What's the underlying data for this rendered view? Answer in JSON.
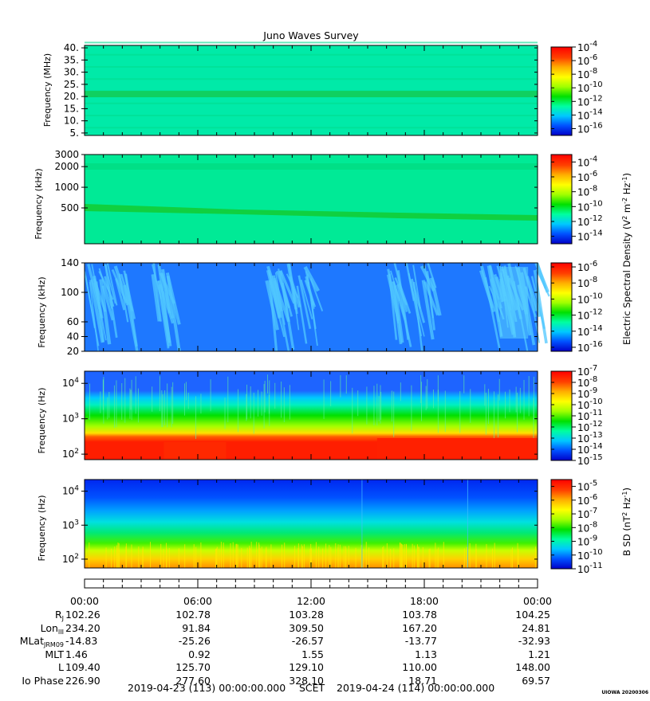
{
  "title": "Juno Waves Survey",
  "colors": {
    "background": "#ffffff",
    "axis": "#000000",
    "colorbar_stops": [
      "#0000c8",
      "#0050ff",
      "#00c8ff",
      "#00ffa0",
      "#00e000",
      "#a0ff00",
      "#ffff00",
      "#ffb000",
      "#ff4000",
      "#ff0000"
    ]
  },
  "chart_data": [
    {
      "type": "heatmap",
      "title": "Juno Waves Survey",
      "ylabel": "Frequency (MHz)",
      "ylim": [
        4,
        41
      ],
      "y_scale": "linear",
      "ytick_labels": [
        "40.",
        "35.",
        "30.",
        "25.",
        "20.",
        "15.",
        "10.",
        "5."
      ],
      "ytick_values": [
        40,
        35,
        30,
        25,
        20,
        15,
        10,
        5
      ],
      "colorbar_tick_labels": [
        "-4",
        "-6",
        "-8",
        "-10",
        "-12",
        "-14",
        "-16"
      ],
      "colorbar_range_log10": [
        -17,
        -4
      ],
      "features": [
        {
          "description": "uniform background",
          "log10_level": -12.8
        },
        {
          "description": "band near 21 MHz",
          "y": 21,
          "log10_level": -11.6
        }
      ]
    },
    {
      "type": "heatmap",
      "ylabel": "Frequency (kHz)",
      "ylim": [
        150,
        3000
      ],
      "y_scale": "log",
      "ytick_labels": [
        "3000",
        "2000",
        "1000",
        "500"
      ],
      "ytick_values": [
        3000,
        2000,
        1000,
        500
      ],
      "colorbar_tick_labels": [
        "-4",
        "-6",
        "-8",
        "-10",
        "-12",
        "-14"
      ],
      "colorbar_range_log10": [
        -15,
        -3
      ],
      "colorbar_label": "Electric Spectral Density (V^2 m^-2 Hz^-1)",
      "features": [
        {
          "description": "background",
          "log10_level": -11.6
        },
        {
          "description": "band near 2000 kHz",
          "y": 2000,
          "log10_level": -10.9
        },
        {
          "description": "drifting band",
          "y_start": 480,
          "y_end": 300,
          "log10_level": -10.2
        }
      ]
    },
    {
      "type": "heatmap",
      "ylabel": "Frequency (kHz)",
      "ylim": [
        20,
        140
      ],
      "y_scale": "linear",
      "ytick_labels": [
        "140",
        "100",
        "60",
        "40",
        "20"
      ],
      "ytick_values": [
        140,
        100,
        60,
        40,
        20
      ],
      "colorbar_tick_labels": [
        "-6",
        "-8",
        "-10",
        "-12",
        "-14",
        "-16"
      ],
      "colorbar_range_log10": [
        -16.5,
        -5.5
      ],
      "features": [
        {
          "description": "quiet background",
          "log10_level": -14.6
        },
        {
          "description": "bursty emission patches",
          "x_hours": [
            0.5,
            4,
            11,
            22,
            30,
            38
          ],
          "log10_level": -13.4
        }
      ]
    },
    {
      "type": "heatmap",
      "ylabel": "Frequency (Hz)",
      "ylim": [
        70,
        22000
      ],
      "y_scale": "log",
      "ytick_labels": [
        "10^4",
        "10^3",
        "10^2"
      ],
      "ytick_values": [
        10000,
        1000,
        100
      ],
      "colorbar_tick_labels": [
        "-7",
        "-8",
        "-9",
        "-10",
        "-11",
        "-12",
        "-13",
        "-14",
        "-15"
      ],
      "colorbar_range_log10": [
        -15,
        -7
      ],
      "features": [
        {
          "description": "high-frequency cutoff",
          "y": 4000
        },
        {
          "description": "intense low-frequency band",
          "y_range": [
            70,
            300
          ],
          "log10_level": -7.3
        }
      ]
    },
    {
      "type": "heatmap",
      "ylabel": "Frequency (Hz)",
      "ylim": [
        55,
        22000
      ],
      "y_scale": "log",
      "ytick_labels": [
        "10^4",
        "10^3",
        "10^2"
      ],
      "ytick_values": [
        10000,
        1000,
        100
      ],
      "colorbar_tick_labels": [
        "-5",
        "-6",
        "-7",
        "-8",
        "-9",
        "-10",
        "-11"
      ],
      "colorbar_range_log10": [
        -11,
        -4.5
      ],
      "colorbar_label": "B SD (nT^2 Hz^-1)",
      "features": [
        {
          "description": "magnetic spectrum decreasing with frequency"
        }
      ]
    }
  ],
  "time_axis": {
    "xlim_hours": [
      0,
      24
    ],
    "tick_labels": [
      "00:00",
      "06:00",
      "12:00",
      "18:00",
      "00:00"
    ],
    "tick_hours": [
      0,
      6,
      12,
      18,
      24
    ],
    "minor_tick_hours": 1
  },
  "ephemeris": {
    "rows": [
      {
        "label": "R",
        "sub": "J",
        "values": [
          "102.26",
          "102.78",
          "103.28",
          "103.78",
          "104.25"
        ]
      },
      {
        "label": "Lon",
        "sub": "III",
        "values": [
          "234.20",
          "91.84",
          "309.50",
          "167.20",
          "24.81"
        ]
      },
      {
        "label": "MLat",
        "sub": "JRM09",
        "values": [
          "-14.83",
          "-25.26",
          "-26.57",
          "-13.77",
          "-32.93"
        ]
      },
      {
        "label": "MLT",
        "sub": "",
        "values": [
          "1.46",
          "0.92",
          "1.55",
          "1.13",
          "1.21"
        ]
      },
      {
        "label": "L",
        "sub": "",
        "values": [
          "109.40",
          "125.70",
          "129.10",
          "110.00",
          "148.00"
        ]
      },
      {
        "label": "Io Phase",
        "sub": "",
        "values": [
          "226.90",
          "277.60",
          "328.10",
          "18.71",
          "69.57"
        ]
      }
    ]
  },
  "footer": {
    "start": "2019-04-23 (113) 00:00:00.000",
    "scet": "SCET",
    "end": "2019-04-24 (114) 00:00:00.000",
    "stamp": "UIOWA 20200306"
  }
}
